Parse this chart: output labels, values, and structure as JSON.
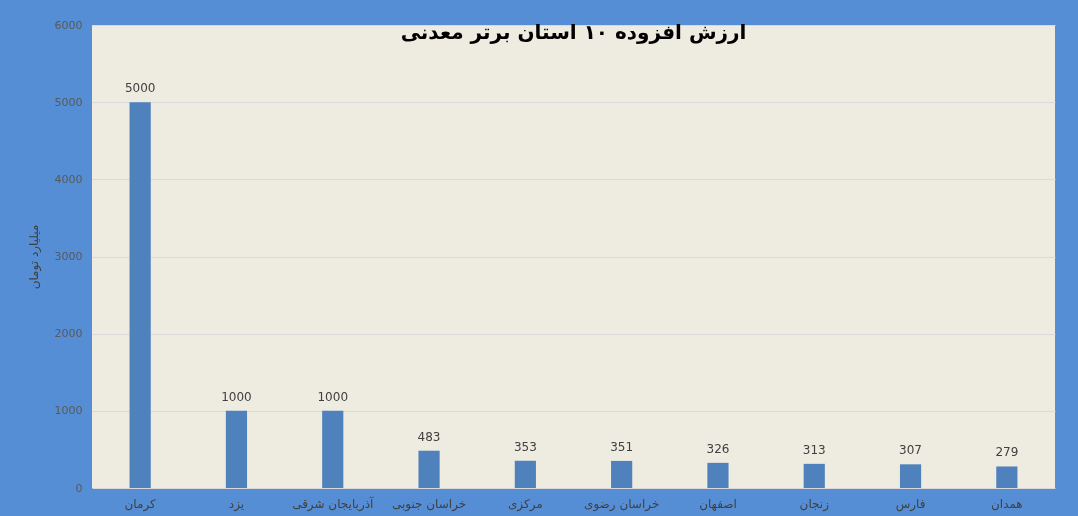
{
  "chart_data": {
    "type": "bar",
    "title": "ارزش افزوده ۱۰ استان برتر معدنی",
    "ylabel": "میلیارد تومان",
    "categories": [
      "کرمان",
      "یزد",
      "آذربایجان شرقی",
      "خراسان جنوبی",
      "مرکزی",
      "خراسان رضوی",
      "اصفهان",
      "زنجان",
      "فارس",
      "همدان"
    ],
    "values": [
      5000,
      1000,
      1000,
      483,
      353,
      351,
      326,
      313,
      307,
      279
    ],
    "color": "#4f81bd",
    "ylim": [
      0,
      6000
    ],
    "yticks": [
      0,
      1000,
      2000,
      3000,
      4000,
      5000,
      6000
    ],
    "grid": "y",
    "data_labels": true
  }
}
